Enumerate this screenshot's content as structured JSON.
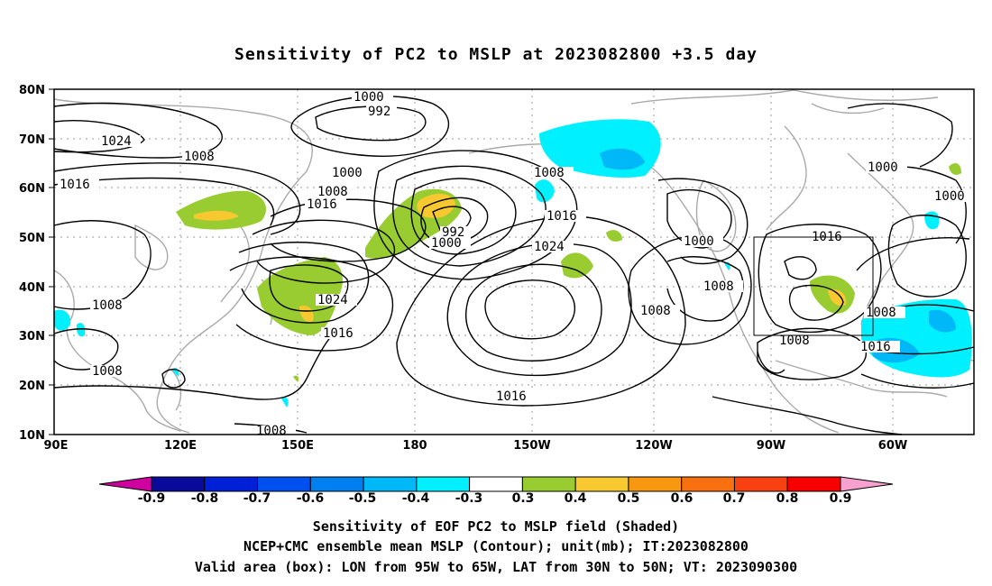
{
  "title": "Sensitivity of PC2 to MSLP at 2023082800 +3.5 day",
  "captions": [
    "Sensitivity of EOF PC2 to MSLP field (Shaded)",
    "NCEP+CMC ensemble mean MSLP (Contour); unit(mb); IT:2023082800",
    "Valid area (box): LON from 95W to 65W, LAT from 30N to 50N; VT: 2023090300"
  ],
  "lat_labels": [
    "80N",
    "70N",
    "60N",
    "50N",
    "40N",
    "30N",
    "20N",
    "10N"
  ],
  "lon_labels": [
    "90E",
    "120E",
    "150E",
    "180",
    "150W",
    "120W",
    "90W",
    "60W"
  ],
  "colorbar": {
    "labels": [
      "-0.9",
      "-0.8",
      "-0.7",
      "-0.6",
      "-0.5",
      "-0.4",
      "-0.3",
      "0.3",
      "0.4",
      "0.5",
      "0.6",
      "0.7",
      "0.8",
      "0.9"
    ],
    "colors": [
      "#d000a0",
      "#0a0a9a",
      "#0020d8",
      "#0050f0",
      "#0080f0",
      "#00b8f8",
      "#00f0ff",
      "#ffffff",
      "#98cc30",
      "#f8c830",
      "#f89810",
      "#f87010",
      "#f84010",
      "#f80000",
      "#f8a0d0"
    ]
  },
  "contour_labels": [
    "1000",
    "992",
    "1024",
    "1008",
    "1016",
    "1000",
    "1008",
    "1016",
    "992",
    "1000",
    "1024",
    "1016",
    "1008",
    "1016",
    "1024",
    "1016",
    "1008",
    "1000",
    "1008",
    "1008",
    "1016",
    "1008",
    "1016",
    "1000",
    "1000",
    "1008",
    "1008",
    "1008"
  ],
  "valid_box": {
    "lon_w": "95W",
    "lon_e": "65W",
    "lat_s": "30N",
    "lat_n": "50N"
  }
}
